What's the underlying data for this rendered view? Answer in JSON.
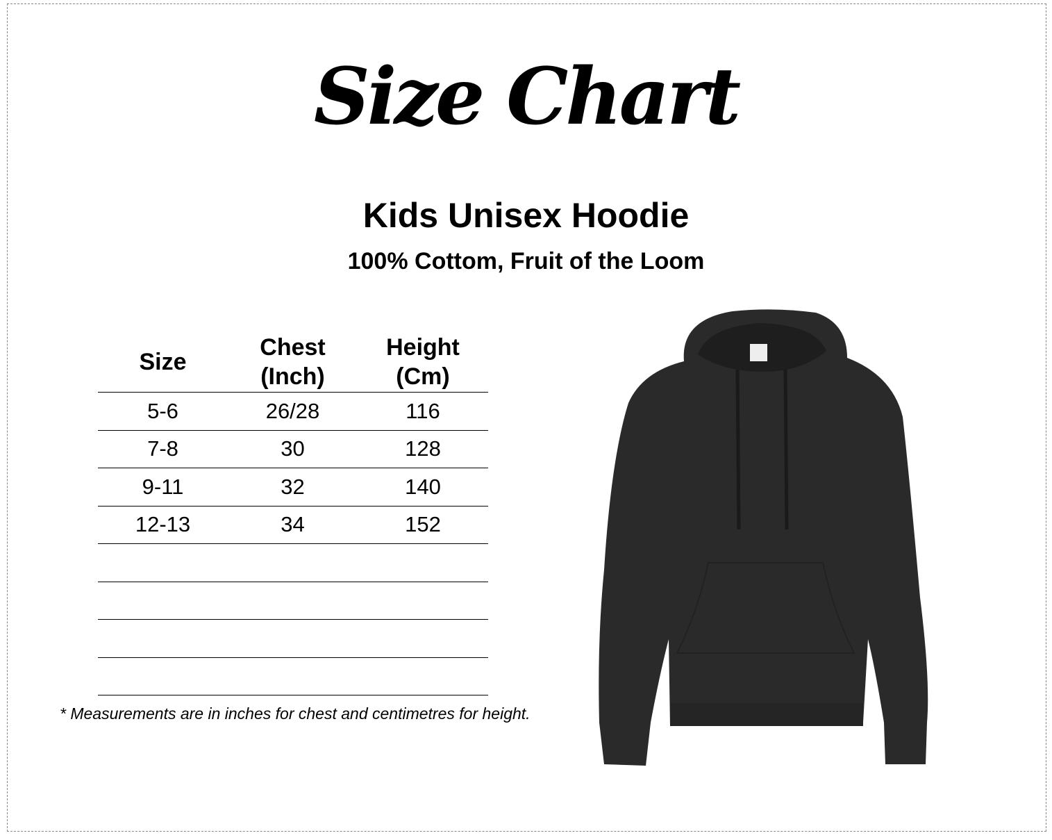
{
  "logo_title": "Size Chart",
  "product": {
    "title": "Kids Unisex Hoodie",
    "subtitle": "100% Cottom, Fruit of the Loom",
    "color": "#2b2a2a"
  },
  "table": {
    "headers": [
      "Size",
      "Chest\n(Inch)",
      "Height\n(Cm)"
    ],
    "rows": [
      [
        "5-6",
        "26/28",
        "116"
      ],
      [
        "7-8",
        "30",
        "128"
      ],
      [
        "9-11",
        "32",
        "140"
      ],
      [
        "12-13",
        "34",
        "152"
      ],
      [
        "",
        "",
        ""
      ],
      [
        "",
        "",
        ""
      ],
      [
        "",
        "",
        ""
      ],
      [
        "",
        "",
        ""
      ]
    ]
  },
  "note": "* Measurements are in inches for chest and centimetres for height."
}
